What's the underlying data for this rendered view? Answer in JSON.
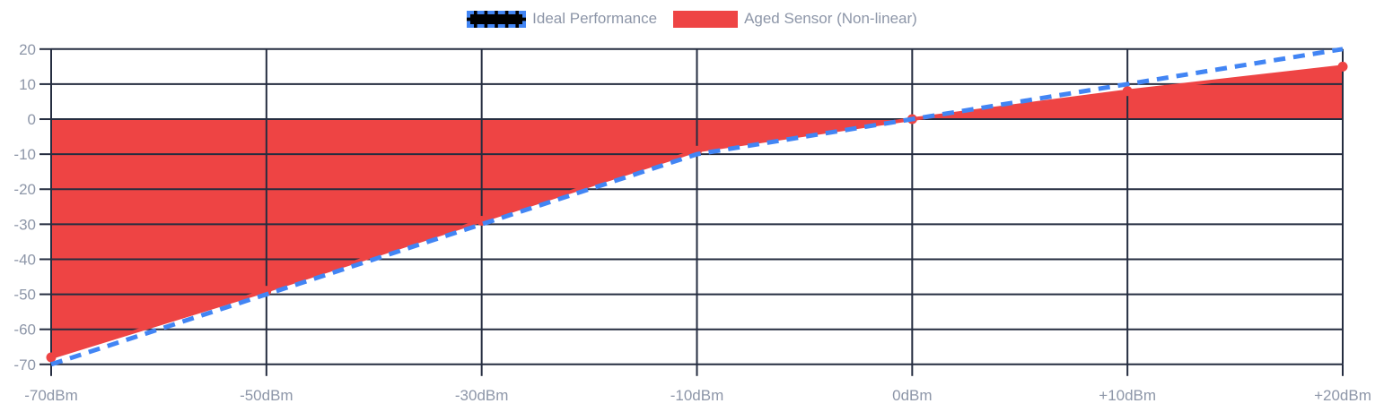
{
  "colors": {
    "ideal_blue": "#4285F4",
    "aged_red": "#EE4444",
    "grid": "#252D40",
    "axis_label": "#8D96A8",
    "legend_swatch_fill": "#000000",
    "background": "#FFFFFF"
  },
  "chart_data": {
    "type": "line",
    "categories": [
      "-70dBm",
      "-50dBm",
      "-30dBm",
      "-10dBm",
      "0dBm",
      "+10dBm",
      "+20dBm"
    ],
    "series": [
      {
        "name": "Ideal Performance",
        "values": [
          -70,
          -50,
          -30,
          -10,
          0,
          10,
          20
        ],
        "color": "#4285F4",
        "style": "dashed-line"
      },
      {
        "name": "Aged Sensor (Non-linear)",
        "values": [
          -68,
          -49,
          -29,
          -9,
          0,
          8,
          15
        ],
        "color": "#EE4444",
        "style": "area-line-points",
        "fill_to_baseline": 0
      }
    ],
    "title": "",
    "xlabel": "",
    "ylabel": "",
    "y_ticks": [
      20,
      10,
      0,
      -10,
      -20,
      -30,
      -40,
      -50,
      -60,
      -70
    ],
    "ylim": [
      -70,
      20
    ],
    "grid": true,
    "legend_position": "top"
  }
}
